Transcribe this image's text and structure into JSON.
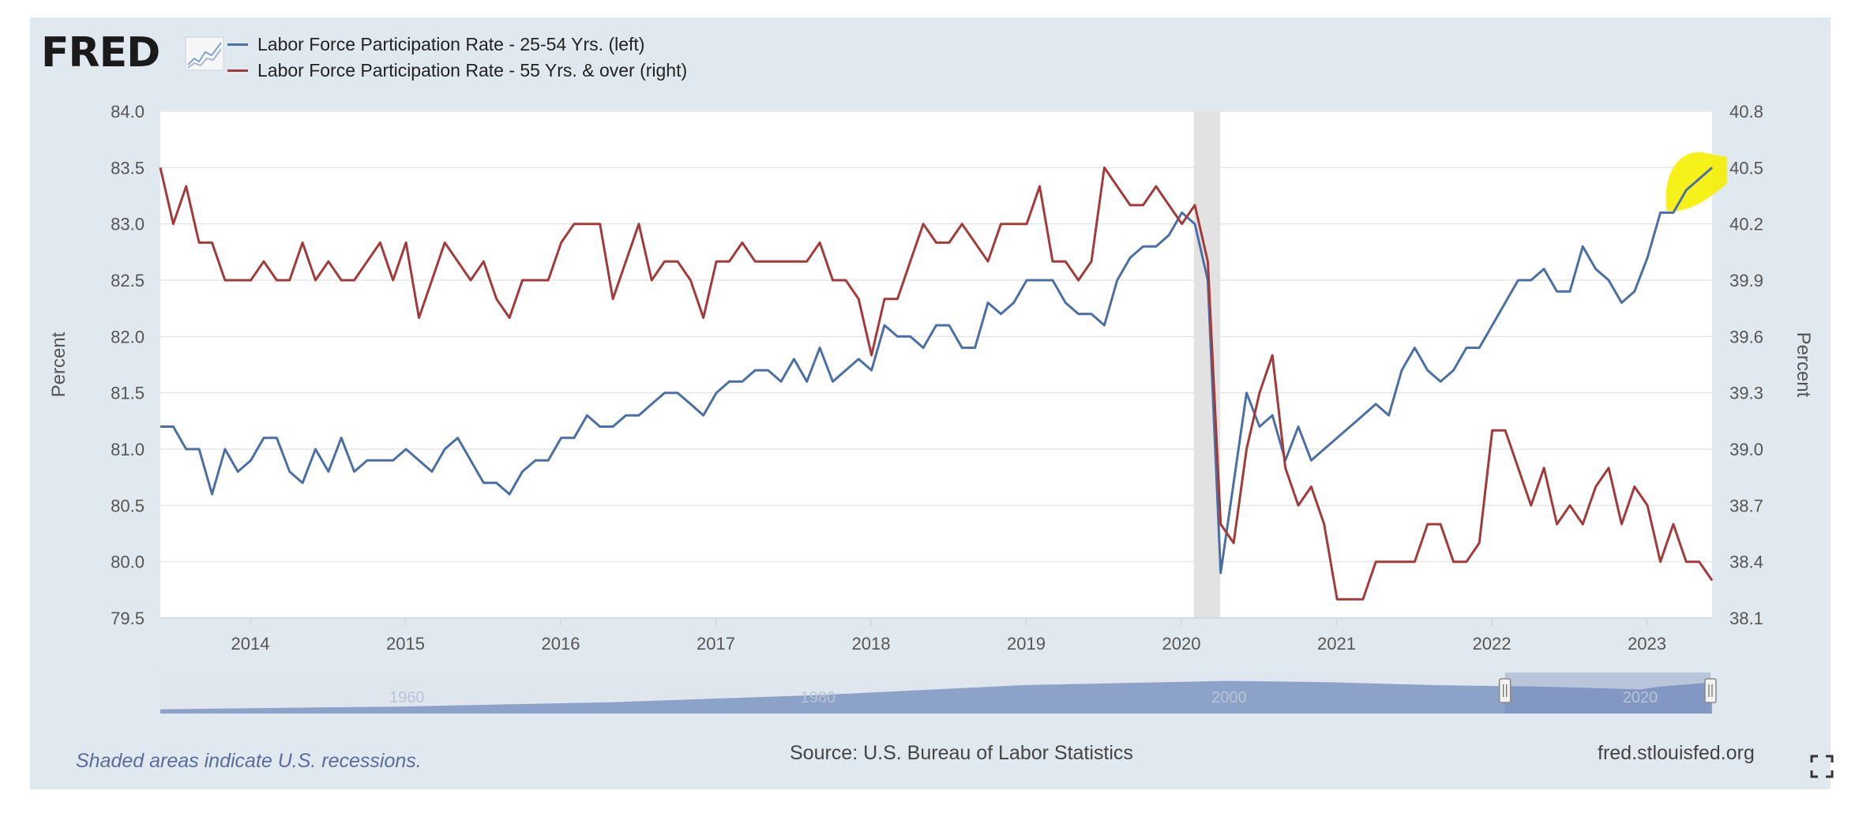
{
  "logo": {
    "text": "FRED",
    "icon": "fred-chart-icon"
  },
  "legend": [
    {
      "label": "Labor Force Participation Rate - 25-54 Yrs. (left)",
      "color": "#4b6fa5"
    },
    {
      "label": "Labor Force Participation Rate - 55 Yrs. & over (right)",
      "color": "#a33a3a"
    }
  ],
  "notes": {
    "recession": "Shaded areas indicate U.S. recessions.",
    "source": "Source: U.S. Bureau of Labor Statistics",
    "site": "fred.stlouisfed.org"
  },
  "chart_data": {
    "type": "line",
    "x_unit": "year",
    "xlim": [
      2013.42,
      2023.42
    ],
    "x_ticks": [
      2014,
      2015,
      2016,
      2017,
      2018,
      2019,
      2020,
      2021,
      2022,
      2023
    ],
    "y_left": {
      "label": "Percent",
      "lim": [
        79.5,
        84.0
      ],
      "ticks": [
        "84.0",
        "83.5",
        "83.0",
        "82.5",
        "82.0",
        "81.5",
        "81.0",
        "80.5",
        "80.0",
        "79.5"
      ]
    },
    "y_right": {
      "label": "Percent",
      "lim": [
        38.1,
        40.8
      ],
      "ticks": [
        "40.8",
        "40.5",
        "40.2",
        "39.9",
        "39.6",
        "39.3",
        "39.0",
        "38.7",
        "38.4",
        "38.1"
      ]
    },
    "grid": true,
    "recession_shading": [
      2020.08,
      2020.25
    ],
    "series": [
      {
        "name": "Labor Force Participation Rate - 25-54 Yrs. (left)",
        "axis": "left",
        "color": "#4b6fa5",
        "x_start": 2013.42,
        "step": 0.083333,
        "values": [
          81.2,
          81.2,
          81.0,
          81.0,
          80.6,
          81.0,
          80.8,
          80.9,
          81.1,
          81.1,
          80.8,
          80.7,
          81.0,
          80.8,
          81.1,
          80.8,
          80.9,
          80.9,
          80.9,
          81.0,
          80.9,
          80.8,
          81.0,
          81.1,
          80.9,
          80.7,
          80.7,
          80.6,
          80.8,
          80.9,
          80.9,
          81.1,
          81.1,
          81.3,
          81.2,
          81.2,
          81.3,
          81.3,
          81.4,
          81.5,
          81.5,
          81.4,
          81.3,
          81.5,
          81.6,
          81.6,
          81.7,
          81.7,
          81.6,
          81.8,
          81.6,
          81.9,
          81.6,
          81.7,
          81.8,
          81.7,
          82.1,
          82.0,
          82.0,
          81.9,
          82.1,
          82.1,
          81.9,
          81.9,
          82.3,
          82.2,
          82.3,
          82.5,
          82.5,
          82.5,
          82.3,
          82.2,
          82.2,
          82.1,
          82.5,
          82.7,
          82.8,
          82.8,
          82.9,
          83.1,
          83.0,
          82.5,
          79.9,
          80.7,
          81.5,
          81.2,
          81.3,
          80.9,
          81.2,
          80.9,
          81.0,
          81.1,
          81.2,
          81.3,
          81.4,
          81.3,
          81.7,
          81.9,
          81.7,
          81.6,
          81.7,
          81.9,
          81.9,
          82.1,
          82.3,
          82.5,
          82.5,
          82.6,
          82.4,
          82.4,
          82.8,
          82.6,
          82.5,
          82.3,
          82.4,
          82.7,
          83.1,
          83.1,
          83.3,
          83.4,
          83.5
        ]
      },
      {
        "name": "Labor Force Participation Rate - 55 Yrs. & over (right)",
        "axis": "right",
        "color": "#a33a3a",
        "x_start": 2013.42,
        "step": 0.083333,
        "values": [
          40.5,
          40.2,
          40.4,
          40.1,
          40.1,
          39.9,
          39.9,
          39.9,
          40.0,
          39.9,
          39.9,
          40.1,
          39.9,
          40.0,
          39.9,
          39.9,
          40.0,
          40.1,
          39.9,
          40.1,
          39.7,
          39.9,
          40.1,
          40.0,
          39.9,
          40.0,
          39.8,
          39.7,
          39.9,
          39.9,
          39.9,
          40.1,
          40.2,
          40.2,
          40.2,
          39.8,
          40.0,
          40.2,
          39.9,
          40.0,
          40.0,
          39.9,
          39.7,
          40.0,
          40.0,
          40.1,
          40.0,
          40.0,
          40.0,
          40.0,
          40.0,
          40.1,
          39.9,
          39.9,
          39.8,
          39.5,
          39.8,
          39.8,
          40.0,
          40.2,
          40.1,
          40.1,
          40.2,
          40.1,
          40.0,
          40.2,
          40.2,
          40.2,
          40.4,
          40.0,
          40.0,
          39.9,
          40.0,
          40.5,
          40.4,
          40.3,
          40.3,
          40.4,
          40.3,
          40.2,
          40.3,
          40.0,
          38.6,
          38.5,
          39.0,
          39.3,
          39.5,
          38.9,
          38.7,
          38.8,
          38.6,
          38.2,
          38.2,
          38.2,
          38.4,
          38.4,
          38.4,
          38.4,
          38.6,
          38.6,
          38.4,
          38.4,
          38.5,
          39.1,
          39.1,
          38.9,
          38.7,
          38.9,
          38.6,
          38.7,
          38.6,
          38.8,
          38.9,
          38.6,
          38.8,
          38.7,
          38.4,
          38.6,
          38.4,
          38.4,
          38.3
        ]
      }
    ],
    "navigator": {
      "labels": [
        "1960",
        "1980",
        "2000",
        "2020"
      ],
      "range_start": 1948,
      "range_end": 2023.5,
      "selected": [
        2013.42,
        2023.42
      ]
    },
    "annotation": {
      "type": "highlight",
      "color": "#f4f000",
      "x": 2023.25,
      "series": 0
    }
  }
}
